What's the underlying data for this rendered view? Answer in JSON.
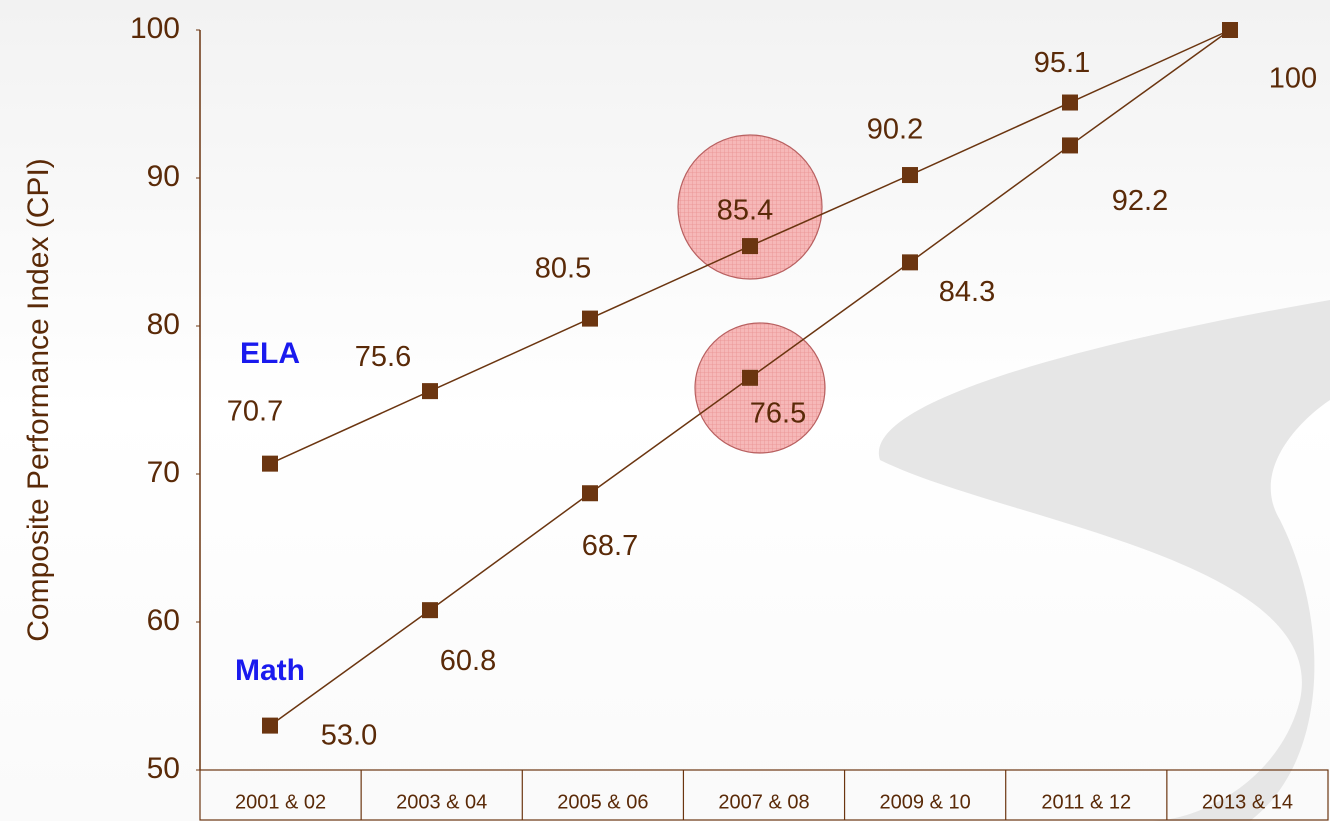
{
  "chart_data": {
    "type": "line",
    "y_axis_label": "Composite Performance Index (CPI)",
    "categories": [
      "2001 & 02",
      "2003 & 04",
      "2005 & 06",
      "2007 & 08",
      "2009 & 10",
      "2011 & 12",
      "2013 & 14"
    ],
    "series": [
      {
        "name": "ELA",
        "color": "#6b3510",
        "values": [
          70.7,
          75.6,
          80.5,
          85.4,
          90.2,
          95.1,
          100
        ],
        "value_labels": [
          "70.7",
          "75.6",
          "80.5",
          "85.4",
          "90.2",
          "95.1",
          "100"
        ]
      },
      {
        "name": "Math",
        "color": "#6b3510",
        "values": [
          53.0,
          60.8,
          68.7,
          76.5,
          84.3,
          92.2,
          100
        ],
        "value_labels": [
          "53.0",
          "60.8",
          "68.7",
          "76.5",
          "84.3",
          "92.2",
          null
        ]
      }
    ],
    "ylim": [
      50,
      100
    ],
    "yticks": [
      50,
      60,
      70,
      80,
      90,
      100
    ],
    "grid": false
  }
}
